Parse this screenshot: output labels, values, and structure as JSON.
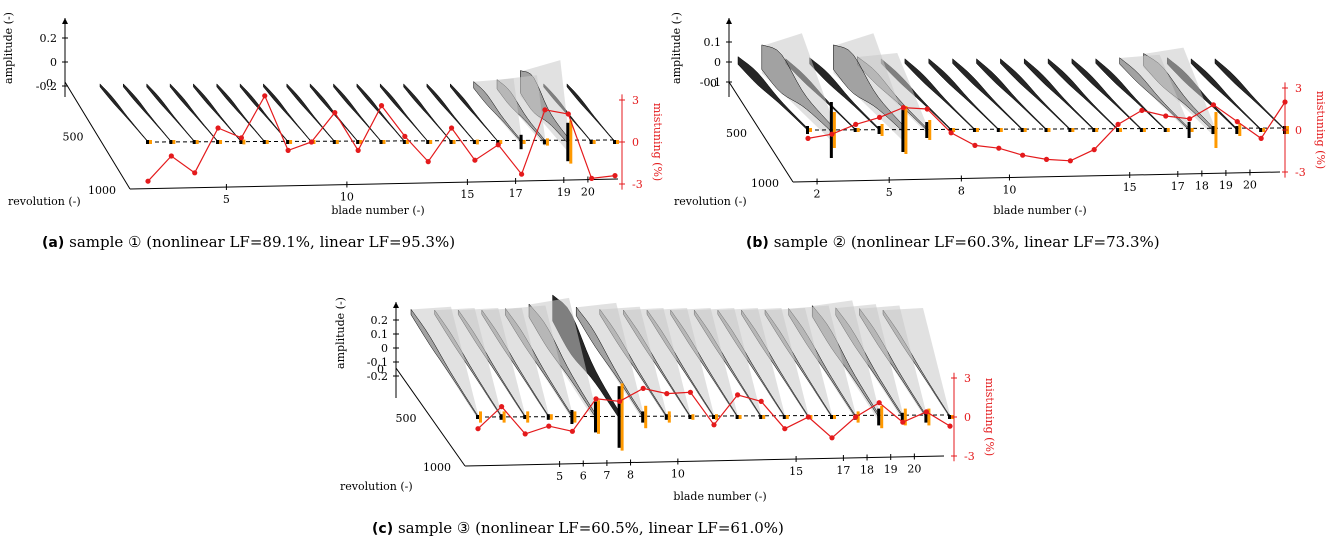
{
  "colors": {
    "mistuning": "#e41a1c",
    "linear_bar": "#ff9900",
    "nonlinear_bar": "#000000",
    "envelope_dark": "#000000",
    "envelope_mid": "#888888",
    "envelope_light": "#c8c8c8"
  },
  "chart_data": [
    {
      "type": "line",
      "caption_tag": "(a)",
      "caption": "sample ① (nonlinear LF=89.1%, linear LF=95.3%)",
      "xlabel": "blade number (-)",
      "ylabel": "amplitude (-)",
      "zlabel": "revolution (-)",
      "y2label": "mistuning (%)",
      "x_ticks": [
        "5",
        "10",
        "15",
        "17",
        "19",
        "20"
      ],
      "x_tick_blades": [
        5,
        10,
        15,
        17,
        19,
        20
      ],
      "y_ticks": [
        "0.2",
        "0",
        "-0.2"
      ],
      "y_tick_values": [
        0.2,
        0,
        -0.2
      ],
      "y2_ticks": [
        "3",
        "0",
        "-3"
      ],
      "z_ticks": [
        "0",
        "500",
        "1000"
      ],
      "blades": [
        1,
        2,
        3,
        4,
        5,
        6,
        7,
        8,
        9,
        10,
        11,
        12,
        13,
        14,
        15,
        16,
        17,
        18,
        19,
        20,
        21
      ],
      "mistuning": [
        -2.8,
        -1.0,
        -2.2,
        1.0,
        0.3,
        3.3,
        -0.6,
        0.0,
        2.1,
        -0.6,
        2.6,
        0.4,
        -1.4,
        1.0,
        -1.3,
        -0.2,
        -2.3,
        2.3,
        2.0,
        -2.6,
        -2.4
      ],
      "nonlinear_amp": [
        0.01,
        0.01,
        0.01,
        0.01,
        0.01,
        0.01,
        0.01,
        0.01,
        0.01,
        0.01,
        0.01,
        0.01,
        0.01,
        0.01,
        0.01,
        0.01,
        0.06,
        0.02,
        0.16,
        0.01,
        0.01
      ],
      "linear_amp": [
        0.005,
        0.005,
        0.005,
        0.005,
        0.02,
        0.005,
        0.005,
        0.005,
        0.005,
        0.005,
        0.005,
        0.005,
        0.005,
        0.005,
        0.02,
        0.005,
        0.005,
        0.03,
        0.18,
        0.01,
        0.005
      ],
      "envelope_peak": [
        0.02,
        0.02,
        0.02,
        0.02,
        0.03,
        0.02,
        0.02,
        0.02,
        0.02,
        0.02,
        0.02,
        0.02,
        0.02,
        0.02,
        0.03,
        0.02,
        0.07,
        0.1,
        0.24,
        0.03,
        0.02
      ],
      "envelope_shade": [
        "dark",
        "dark",
        "dark",
        "dark",
        "dark",
        "dark",
        "dark",
        "dark",
        "dark",
        "dark",
        "dark",
        "dark",
        "dark",
        "dark",
        "dark",
        "dark",
        "mid",
        "mid",
        "mid",
        "dark",
        "dark"
      ]
    },
    {
      "type": "line",
      "caption_tag": "(b)",
      "caption": "sample ② (nonlinear LF=60.3%, linear LF=73.3%)",
      "xlabel": "blade number (-)",
      "ylabel": "amplitude (-)",
      "zlabel": "revolution (-)",
      "y2label": "mistuning (%)",
      "x_ticks": [
        "2",
        "5",
        "8",
        "10",
        "15",
        "17",
        "18",
        "19",
        "20"
      ],
      "x_tick_blades": [
        2,
        5,
        8,
        10,
        15,
        17,
        18,
        19,
        20
      ],
      "y_ticks": [
        "0.1",
        "0",
        "-0.1"
      ],
      "y_tick_values": [
        0.1,
        0,
        -0.1
      ],
      "y2_ticks": [
        "3",
        "0",
        "-3"
      ],
      "z_ticks": [
        "0",
        "500",
        "1000"
      ],
      "blades": [
        1,
        2,
        3,
        4,
        5,
        6,
        7,
        8,
        9,
        10,
        11,
        12,
        13,
        14,
        15,
        16,
        17,
        18,
        19,
        20,
        21
      ],
      "mistuning": [
        -0.6,
        -0.3,
        0.4,
        0.9,
        1.6,
        1.5,
        -0.2,
        -1.1,
        -1.3,
        -1.8,
        -2.1,
        -2.2,
        -1.4,
        0.4,
        1.4,
        1.0,
        0.8,
        1.8,
        0.6,
        -0.6,
        2.0
      ],
      "nonlinear_amp": [
        0.02,
        0.14,
        0.01,
        0.02,
        0.11,
        0.04,
        0.01,
        0.01,
        0.01,
        0.01,
        0.01,
        0.01,
        0.01,
        0.01,
        0.01,
        0.01,
        0.04,
        0.02,
        0.02,
        0.01,
        0.02
      ],
      "linear_amp": [
        0.01,
        0.09,
        0.01,
        0.03,
        0.12,
        0.05,
        0.01,
        0.01,
        0.01,
        0.01,
        0.01,
        0.01,
        0.01,
        0.01,
        0.01,
        0.01,
        0.01,
        0.09,
        0.03,
        0.01,
        0.02
      ],
      "envelope_peak": [
        0.05,
        0.16,
        0.03,
        0.04,
        0.16,
        0.05,
        0.03,
        0.03,
        0.03,
        0.03,
        0.03,
        0.03,
        0.03,
        0.03,
        0.03,
        0.03,
        0.04,
        0.08,
        0.04,
        0.03,
        0.03
      ],
      "envelope_shade": [
        "dark",
        "mid",
        "dark",
        "dark",
        "mid",
        "mid",
        "dark",
        "dark",
        "dark",
        "dark",
        "dark",
        "dark",
        "dark",
        "dark",
        "dark",
        "dark",
        "mid",
        "mid",
        "dark",
        "dark",
        "dark"
      ]
    },
    {
      "type": "line",
      "caption_tag": "(c)",
      "caption": "sample ③ (nonlinear LF=60.5%, linear LF=61.0%)",
      "xlabel": "blade number (-)",
      "ylabel": "amplitude (-)",
      "zlabel": "revolution (-)",
      "y2label": "mistuning (%)",
      "x_ticks": [
        "5",
        "6",
        "7",
        "8",
        "10",
        "15",
        "17",
        "18",
        "19",
        "20"
      ],
      "x_tick_blades": [
        5,
        6,
        7,
        8,
        10,
        15,
        17,
        18,
        19,
        20
      ],
      "y_ticks": [
        "0.2",
        "0.1",
        "0",
        "-0.1",
        "-0.2"
      ],
      "y_tick_values": [
        0.2,
        0.1,
        0,
        -0.1,
        -0.2
      ],
      "y2_ticks": [
        "3",
        "0",
        "-3"
      ],
      "z_ticks": [
        "0",
        "500",
        "1000"
      ],
      "blades": [
        1,
        2,
        3,
        4,
        5,
        6,
        7,
        8,
        9,
        10,
        11,
        12,
        13,
        14,
        15,
        16,
        17,
        18,
        19,
        20,
        21
      ],
      "mistuning": [
        -0.9,
        0.8,
        -1.3,
        -0.7,
        -1.1,
        1.4,
        1.2,
        2.2,
        1.8,
        1.9,
        -0.6,
        1.7,
        1.2,
        -0.9,
        0.0,
        -1.6,
        0.0,
        1.1,
        -0.4,
        0.4,
        -0.7
      ],
      "nonlinear_amp": [
        0.01,
        0.02,
        0.01,
        0.02,
        0.05,
        0.11,
        0.22,
        0.04,
        0.02,
        0.01,
        0.01,
        0.01,
        0.01,
        0.01,
        0.01,
        0.01,
        0.02,
        0.06,
        0.03,
        0.04,
        0.01
      ],
      "linear_amp": [
        0.04,
        0.04,
        0.04,
        0.02,
        0.04,
        0.12,
        0.24,
        0.08,
        0.04,
        0.02,
        0.02,
        0.01,
        0.01,
        0.01,
        0.01,
        0.01,
        0.04,
        0.08,
        0.06,
        0.06,
        0.01
      ],
      "envelope_peak": [
        0.05,
        0.04,
        0.04,
        0.04,
        0.06,
        0.12,
        0.24,
        0.08,
        0.05,
        0.04,
        0.04,
        0.04,
        0.04,
        0.04,
        0.04,
        0.04,
        0.06,
        0.1,
        0.07,
        0.06,
        0.04
      ],
      "envelope_shade": [
        "mid",
        "mid",
        "mid",
        "mid",
        "mid",
        "mid",
        "dark",
        "mid",
        "mid",
        "mid",
        "mid",
        "mid",
        "mid",
        "mid",
        "mid",
        "mid",
        "mid",
        "mid",
        "mid",
        "mid",
        "mid"
      ]
    }
  ]
}
